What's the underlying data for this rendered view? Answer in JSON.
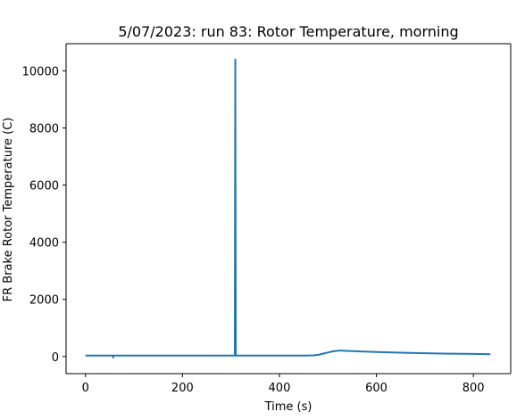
{
  "chart_data": {
    "type": "line",
    "title": "5/07/2023: run 83: Rotor Temperature, morning",
    "xlabel": "Time (s)",
    "ylabel": "FR Brake Rotor Temperature (C)",
    "xlim": [
      -40,
      877
    ],
    "ylim": [
      -600,
      10950
    ],
    "x_ticks": [
      0,
      200,
      400,
      600,
      800
    ],
    "y_ticks": [
      0,
      2000,
      4000,
      6000,
      8000,
      10000
    ],
    "x_tick_labels": [
      "0",
      "200",
      "400",
      "600",
      "800"
    ],
    "y_tick_labels": [
      "0",
      "2000",
      "4000",
      "6000",
      "8000",
      "10000"
    ],
    "grid": false,
    "line_color": "#1f77b4",
    "series": [
      {
        "x": [
          0,
          50,
          57,
          57,
          58,
          60,
          100,
          200,
          300,
          308,
          309,
          309,
          310,
          311,
          350,
          400,
          450,
          470,
          480,
          490,
          500,
          510,
          520,
          525,
          550,
          600,
          650,
          700,
          750,
          800,
          835
        ],
        "y": [
          30,
          30,
          30,
          -40,
          30,
          30,
          30,
          30,
          30,
          30,
          10400,
          10350,
          30,
          30,
          30,
          30,
          30,
          40,
          60,
          100,
          140,
          180,
          200,
          210,
          190,
          160,
          135,
          115,
          100,
          90,
          80
        ]
      }
    ]
  }
}
